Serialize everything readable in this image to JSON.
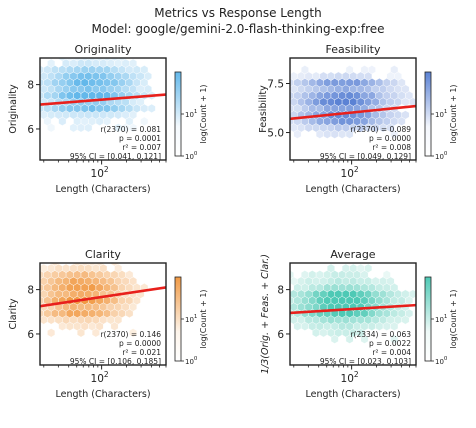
{
  "figure": {
    "title_line1": "Metrics vs Response Length",
    "title_line2": "Model: google/gemini-2.0-flash-thinking-exp:free"
  },
  "chart_data": [
    {
      "type": "heatmap",
      "title": "Originality",
      "xlabel": "Length (Characters)",
      "ylabel": "Originality",
      "xscale": "log",
      "xlim": [
        18,
        600
      ],
      "ylim": [
        4.6,
        9.2
      ],
      "x_ticks": [
        {
          "value": 100,
          "base": "10",
          "exp": "2"
        }
      ],
      "y_ticks": [
        {
          "value": 6,
          "label": "6"
        },
        {
          "value": 8,
          "label": "8"
        }
      ],
      "fit_line": {
        "x": [
          18,
          600
        ],
        "y": [
          7.1,
          7.55
        ],
        "color": "#e8201c"
      },
      "stats": {
        "r": "r(2370) = 0.081",
        "p": "p = 0.0001",
        "r2": "r² = 0.007",
        "ci": "95% CI = [0.041, 0.121]"
      },
      "density": {
        "bands": [
          7.0,
          7.5,
          8.0,
          8.5
        ],
        "center_log10x": 1.85,
        "spread": 0.55
      },
      "colormap": {
        "low": "#f4f9fd",
        "high": "#63b8ea"
      },
      "colorbar": {
        "label": "log(Count + 1)",
        "ticks": [
          {
            "base": "10",
            "exp": "1",
            "pos": 0.5
          },
          {
            "base": "10",
            "exp": "0",
            "pos": 1.0
          }
        ]
      },
      "grid": false
    },
    {
      "type": "heatmap",
      "title": "Feasibility",
      "xlabel": "Length (Characters)",
      "ylabel": "Feasibility",
      "xscale": "log",
      "xlim": [
        18,
        600
      ],
      "ylim": [
        3.6,
        8.8
      ],
      "x_ticks": [
        {
          "value": 100,
          "base": "10",
          "exp": "2"
        }
      ],
      "y_ticks": [
        {
          "value": 5.0,
          "label": "5.0"
        },
        {
          "value": 7.5,
          "label": "7.5"
        }
      ],
      "fit_line": {
        "x": [
          18,
          600
        ],
        "y": [
          5.7,
          6.35
        ],
        "color": "#e8201c"
      },
      "stats": {
        "r": "r(2370) = 0.089",
        "p": "p = 0.0000",
        "r2": "r² = 0.008",
        "ci": "95% CI = [0.049, 0.129]"
      },
      "density": {
        "bands": [
          5.5,
          6.0,
          6.5,
          7.0,
          7.5
        ],
        "center_log10x": 1.9,
        "spread": 0.55
      },
      "colormap": {
        "low": "#f3f6fc",
        "high": "#5b82d4"
      },
      "colorbar": {
        "label": "log(Count + 1)",
        "ticks": [
          {
            "base": "10",
            "exp": "1",
            "pos": 0.5
          },
          {
            "base": "10",
            "exp": "0",
            "pos": 1.0
          }
        ]
      },
      "grid": false
    },
    {
      "type": "heatmap",
      "title": "Clarity",
      "xlabel": "Length (Characters)",
      "ylabel": "Clarity",
      "xscale": "log",
      "xlim": [
        18,
        600
      ],
      "ylim": [
        4.6,
        9.2
      ],
      "x_ticks": [
        {
          "value": 100,
          "base": "10",
          "exp": "2"
        }
      ],
      "y_ticks": [
        {
          "value": 6,
          "label": "6"
        },
        {
          "value": 8,
          "label": "8"
        }
      ],
      "fit_line": {
        "x": [
          18,
          600
        ],
        "y": [
          7.25,
          8.1
        ],
        "color": "#e8201c"
      },
      "stats": {
        "r": "r(2370) = 0.146",
        "p": "p = 0.0000",
        "r2": "r² = 0.021",
        "ci": "95% CI = [0.106, 0.185]"
      },
      "density": {
        "bands": [
          7.0,
          7.5,
          8.0,
          8.5
        ],
        "center_log10x": 1.75,
        "spread": 0.5
      },
      "colormap": {
        "low": "#fdf4ea",
        "high": "#f19a45"
      },
      "colorbar": {
        "label": "log(Count + 1)",
        "ticks": [
          {
            "base": "10",
            "exp": "1",
            "pos": 0.5
          },
          {
            "base": "10",
            "exp": "0",
            "pos": 1.0
          }
        ]
      },
      "grid": false
    },
    {
      "type": "heatmap",
      "title": "Average",
      "xlabel": "Length (Characters)",
      "ylabel": "1/3(Orig. + Feas. + Clar.)",
      "xscale": "log",
      "xlim": [
        18,
        600
      ],
      "ylim": [
        4.6,
        9.2
      ],
      "x_ticks": [
        {
          "value": 100,
          "base": "10",
          "exp": "2"
        }
      ],
      "y_ticks": [
        {
          "value": 6,
          "label": "6"
        },
        {
          "value": 8,
          "label": "8"
        }
      ],
      "fit_line": {
        "x": [
          18,
          600
        ],
        "y": [
          6.95,
          7.3
        ],
        "color": "#e8201c"
      },
      "stats": {
        "r": "r(2334) = 0.063",
        "p": "p = 0.0022",
        "r2": "r² = 0.004",
        "ci": "95% CI = [0.023, 0.103]"
      },
      "density": {
        "bands": [
          6.9,
          7.2,
          7.5,
          7.8
        ],
        "center_log10x": 1.9,
        "spread": 0.55
      },
      "colormap": {
        "low": "#eef9f7",
        "high": "#4ec9b5"
      },
      "colorbar": {
        "label": "log(Count + 1)",
        "ticks": [
          {
            "base": "10",
            "exp": "1",
            "pos": 0.5
          },
          {
            "base": "10",
            "exp": "0",
            "pos": 1.0
          }
        ]
      },
      "grid": false
    }
  ]
}
